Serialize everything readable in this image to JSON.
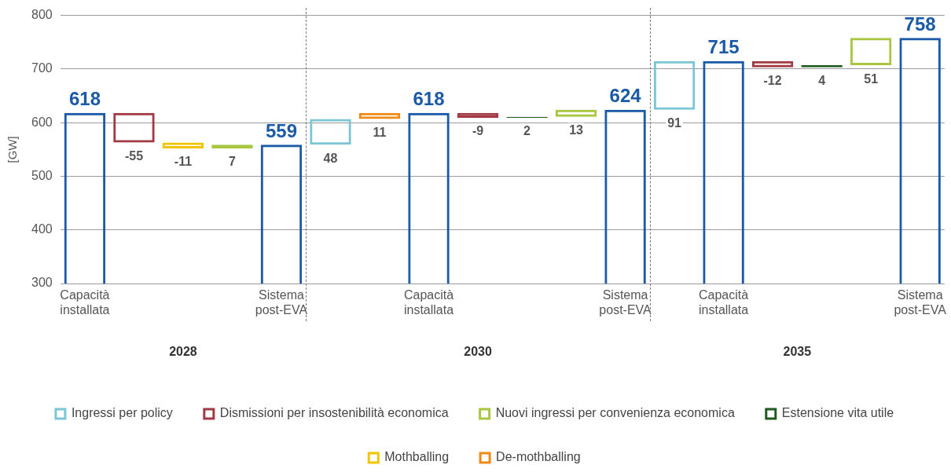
{
  "chart_data": {
    "type": "bar",
    "ylabel": "[GW]",
    "categories": [
      "Capacità installata",
      null,
      null,
      null,
      "Sistema post-EVA",
      null,
      null,
      "Capacità installata",
      null,
      null,
      null,
      "Sistema post-EVA",
      null,
      "Capacità installata",
      null,
      null,
      null,
      "Sistema post-EVA"
    ],
    "series": [
      {
        "color": "#1a5aa6",
        "values": [
          618,
          null,
          null,
          null,
          559,
          null,
          null,
          618,
          null,
          null,
          null,
          624,
          null,
          715,
          null,
          null,
          null,
          758
        ],
        "base": [
          0,
          null,
          null,
          null,
          0,
          null,
          null,
          0,
          null,
          null,
          null,
          0,
          null,
          0,
          null,
          null,
          null,
          0
        ]
      },
      {
        "name": "Ingressi per policy",
        "color": "#7cc5d6",
        "values": [
          null,
          null,
          null,
          null,
          null,
          48,
          null,
          null,
          null,
          null,
          null,
          null,
          91,
          null,
          null,
          null,
          null,
          null
        ],
        "base": [
          null,
          null,
          null,
          null,
          null,
          559,
          null,
          null,
          null,
          null,
          null,
          null,
          624,
          null,
          null,
          null,
          null,
          null
        ]
      },
      {
        "name": "Dismissioni per insostenibilità economica",
        "color": "#a23a44",
        "values": [
          null,
          -55,
          null,
          null,
          null,
          null,
          null,
          null,
          -9,
          null,
          null,
          null,
          null,
          null,
          -12,
          null,
          null,
          null
        ],
        "base": [
          null,
          618,
          null,
          null,
          null,
          null,
          null,
          null,
          618,
          null,
          null,
          null,
          null,
          null,
          715,
          null,
          null,
          null
        ]
      },
      {
        "name": "Nuovi ingressi per convenienza economica",
        "color": "#a9c640",
        "values": [
          null,
          null,
          null,
          7,
          null,
          null,
          null,
          null,
          null,
          null,
          13,
          null,
          null,
          null,
          null,
          null,
          51,
          null
        ],
        "base": [
          null,
          null,
          null,
          552,
          null,
          null,
          null,
          null,
          null,
          null,
          611,
          null,
          null,
          null,
          null,
          null,
          707,
          null
        ]
      },
      {
        "name": "Estensione vita utile",
        "color": "#1e5a1e",
        "values": [
          null,
          null,
          null,
          null,
          null,
          null,
          null,
          null,
          null,
          2,
          null,
          null,
          null,
          null,
          null,
          4,
          null,
          null
        ],
        "base": [
          null,
          null,
          null,
          null,
          null,
          null,
          null,
          null,
          null,
          609,
          null,
          null,
          null,
          null,
          null,
          703,
          null,
          null
        ]
      },
      {
        "name": "Mothballing",
        "color": "#f2c500",
        "values": [
          null,
          null,
          -11,
          null,
          null,
          null,
          null,
          null,
          null,
          null,
          null,
          null,
          null,
          null,
          null,
          null,
          null,
          null
        ],
        "base": [
          null,
          null,
          563,
          null,
          null,
          null,
          null,
          null,
          null,
          null,
          null,
          null,
          null,
          null,
          null,
          null,
          null,
          null
        ]
      },
      {
        "name": "De-mothballing",
        "color": "#ef8a17",
        "values": [
          null,
          null,
          null,
          null,
          null,
          null,
          11,
          null,
          null,
          null,
          null,
          null,
          null,
          null,
          null,
          null,
          null,
          null
        ],
        "base": [
          null,
          null,
          null,
          null,
          null,
          null,
          607,
          null,
          null,
          null,
          null,
          null,
          null,
          null,
          null,
          null,
          null,
          null
        ]
      }
    ],
    "ylim": [
      300,
      800
    ],
    "yticks": [
      300,
      400,
      500,
      600,
      700,
      800
    ],
    "grid": "y",
    "legend": "bottom",
    "data_labels": true,
    "annotations": [
      "2028",
      "2030",
      "2035"
    ]
  }
}
